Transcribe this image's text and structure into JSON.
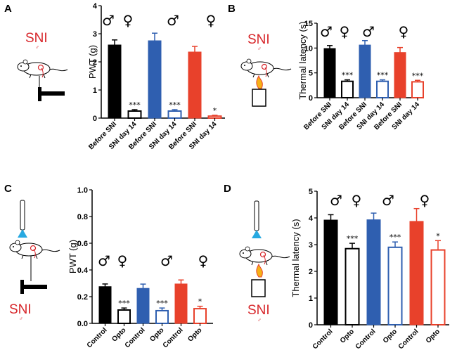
{
  "panels": [
    {
      "letter": "A",
      "sni_label": "SNI",
      "sni_sub": "♂",
      "sex_symbols": [
        "♂",
        "♀",
        "♂",
        "♀"
      ],
      "chart_data": {
        "type": "bar",
        "ylabel": "PWT (g)",
        "ylim": [
          0,
          4
        ],
        "yticks": [
          "0",
          "1",
          "2",
          "3",
          "4"
        ],
        "categories": [
          "Before SNI",
          "SNI day 14",
          "Before SNI",
          "SNI day 14",
          "Before SNI",
          "SNI day 14"
        ],
        "values": [
          2.6,
          0.25,
          2.75,
          0.25,
          2.35,
          0.07
        ],
        "errors": [
          0.18,
          0.05,
          0.27,
          0.05,
          0.2,
          0.03
        ],
        "significance": [
          "",
          "***",
          "",
          "***",
          "",
          "*"
        ],
        "colors": [
          "#000000",
          "#000000",
          "#2f5fb0",
          "#2f5fb0",
          "#e8412b",
          "#e8412b"
        ],
        "filled": [
          true,
          false,
          true,
          false,
          true,
          false
        ]
      }
    },
    {
      "letter": "B",
      "sni_label": "SNI",
      "sni_sub": "♂",
      "sex_symbols": [
        "♂",
        "♀",
        "♂",
        "♀"
      ],
      "chart_data": {
        "type": "bar",
        "ylabel": "Thermal latency (s)",
        "ylim": [
          0,
          15
        ],
        "yticks": [
          "0",
          "5",
          "10",
          "15"
        ],
        "categories": [
          "Before SNI",
          "SNI day 14",
          "Before SNI",
          "SNI day 14",
          "Before SNI",
          "SNI day 14"
        ],
        "values": [
          9.9,
          3.3,
          10.6,
          3.3,
          9.1,
          3.2
        ],
        "errors": [
          0.6,
          0.3,
          0.9,
          0.3,
          1.0,
          0.3
        ],
        "significance": [
          "",
          "***",
          "",
          "***",
          "",
          "***"
        ],
        "colors": [
          "#000000",
          "#000000",
          "#2f5fb0",
          "#2f5fb0",
          "#e8412b",
          "#e8412b"
        ],
        "filled": [
          true,
          false,
          true,
          false,
          true,
          false
        ]
      }
    },
    {
      "letter": "C",
      "sni_label": "SNI",
      "sni_sub": "♂",
      "sex_symbols": [
        "♂",
        "♀",
        "♂",
        "♀"
      ],
      "chart_data": {
        "type": "bar",
        "ylabel": "PWT (g)",
        "ylim": [
          0,
          1.0
        ],
        "yticks": [
          "0.0",
          "0.2",
          "0.4",
          "0.6",
          "0.8",
          "1.0"
        ],
        "categories": [
          "Control",
          "Opto",
          "Control",
          "Opto",
          "Control",
          "Opto"
        ],
        "values": [
          0.275,
          0.1,
          0.262,
          0.095,
          0.295,
          0.11
        ],
        "errors": [
          0.02,
          0.015,
          0.032,
          0.02,
          0.03,
          0.018
        ],
        "significance": [
          "",
          "***",
          "",
          "***",
          "",
          "*"
        ],
        "colors": [
          "#000000",
          "#000000",
          "#2f5fb0",
          "#2f5fb0",
          "#e8412b",
          "#e8412b"
        ],
        "filled": [
          true,
          false,
          true,
          false,
          true,
          false
        ]
      }
    },
    {
      "letter": "D",
      "sni_label": "SNI",
      "sni_sub": "♂",
      "sex_symbols": [
        "♂",
        "♀",
        "♂",
        "♀"
      ],
      "chart_data": {
        "type": "bar",
        "ylabel": "Thermal latency (s)",
        "ylim": [
          0,
          5
        ],
        "yticks": [
          "0",
          "1",
          "2",
          "3",
          "4",
          "5"
        ],
        "categories": [
          "Control",
          "Opto",
          "Control",
          "Opto",
          "Control",
          "Opto"
        ],
        "values": [
          3.92,
          2.85,
          3.93,
          2.9,
          3.87,
          2.8
        ],
        "errors": [
          0.2,
          0.2,
          0.25,
          0.2,
          0.48,
          0.35
        ],
        "significance": [
          "",
          "***",
          "",
          "***",
          "",
          "*"
        ],
        "colors": [
          "#000000",
          "#000000",
          "#2f5fb0",
          "#2f5fb0",
          "#e8412b",
          "#e8412b"
        ],
        "filled": [
          true,
          false,
          true,
          false,
          true,
          false
        ]
      }
    }
  ]
}
